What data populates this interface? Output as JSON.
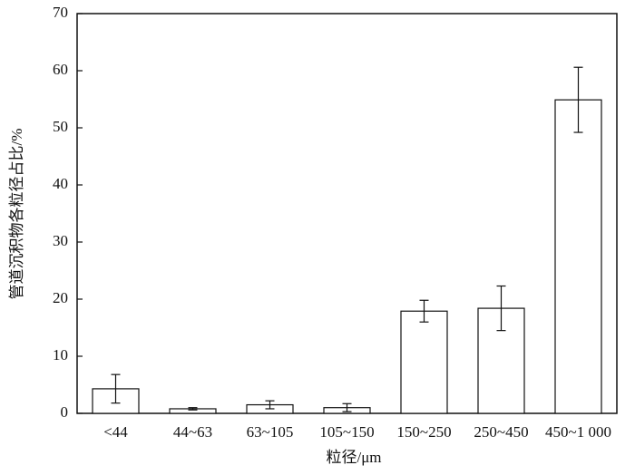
{
  "chart_data": {
    "type": "bar",
    "xlabel": "粒径/μm",
    "ylabel": "管道沉积物各粒径占比/%",
    "categories": [
      "<44",
      "44~63",
      "63~105",
      "105~150",
      "150~250",
      "250~450",
      "450~1 000"
    ],
    "values": [
      4.3,
      0.8,
      1.5,
      1.0,
      17.9,
      18.4,
      54.9
    ],
    "errors": [
      2.5,
      0.2,
      0.7,
      0.7,
      1.9,
      3.9,
      5.7
    ],
    "color": "#ffffff",
    "ylim": [
      0,
      70
    ],
    "yticks": [
      0,
      10,
      20,
      30,
      40,
      50,
      60,
      70
    ]
  }
}
